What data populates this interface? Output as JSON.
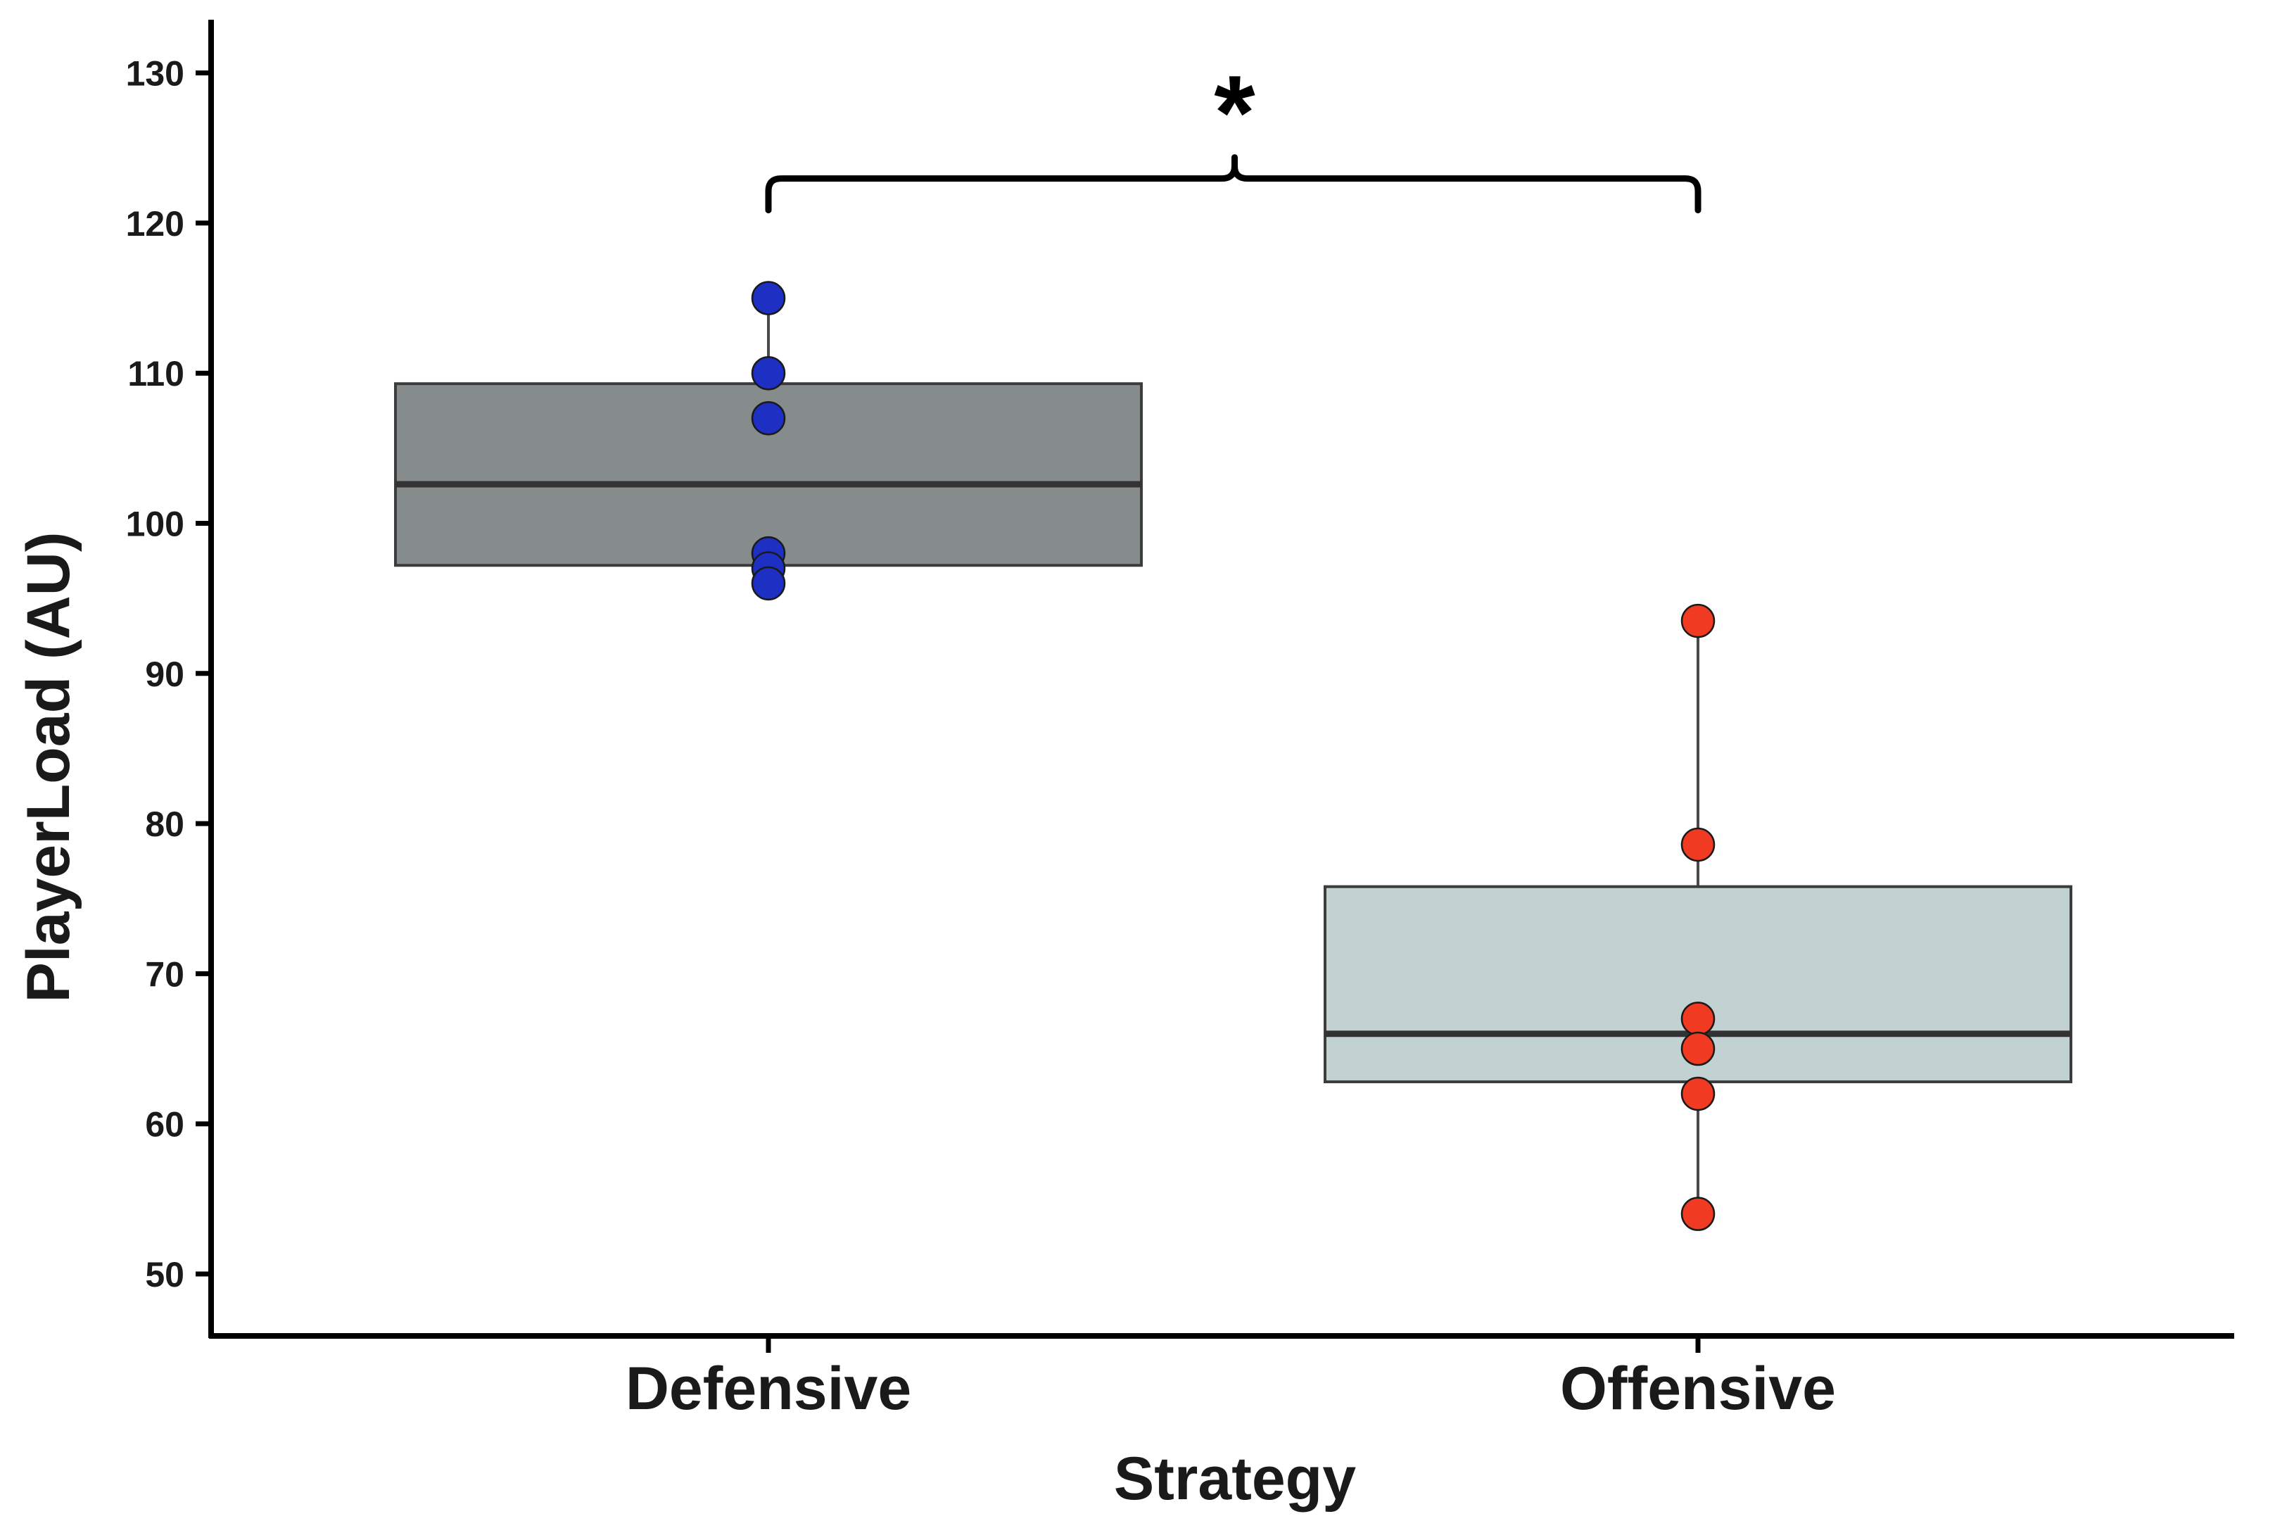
{
  "chart_data": {
    "type": "box",
    "title": "",
    "xlabel": "Strategy",
    "ylabel": "PlayerLoad (AU)",
    "ylim": [
      46,
      134
    ],
    "yticks": [
      50,
      60,
      70,
      80,
      90,
      100,
      110,
      120,
      130
    ],
    "grid": false,
    "legend": "none",
    "categories": [
      "Defensive",
      "Offensive"
    ],
    "boxes": [
      {
        "category": "Defensive",
        "q1": 97.2,
        "median": 102.6,
        "q3": 109.3,
        "whisker_low": 96,
        "whisker_high": 115,
        "box_color": "#858c8b",
        "point_color": "#1e2fc4",
        "points": [
          115,
          110,
          107,
          98,
          97,
          96
        ]
      },
      {
        "category": "Offensive",
        "q1": 62.8,
        "median": 66,
        "q3": 75.8,
        "whisker_low": 54,
        "whisker_high": 93.5,
        "box_color": "#c2d1d2",
        "point_color": "#f03b22",
        "points": [
          93.5,
          78.6,
          67,
          65,
          62,
          54
        ]
      }
    ],
    "annotations": [
      {
        "text": "*",
        "type": "significance-bracket",
        "from": "Defensive",
        "to": "Offensive",
        "y": 124
      }
    ]
  }
}
